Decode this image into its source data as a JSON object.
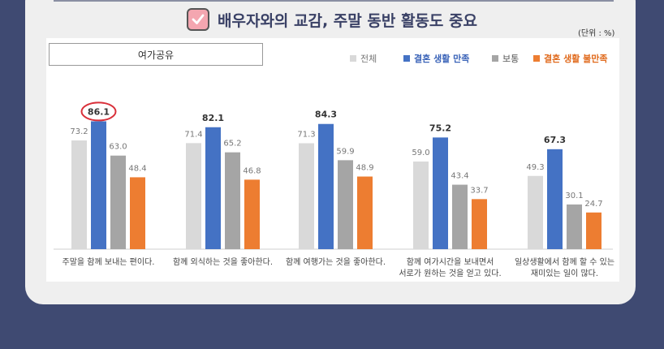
{
  "header": {
    "title": "배우자와의 교감, 주말 동반 활동도 중요",
    "unit": "(단위 : %)"
  },
  "panel": {
    "subtitle": "여가공유"
  },
  "colors": {
    "전체": "#d9d9d9",
    "결혼 생활 만족": "#4472c4",
    "보통": "#a5a5a5",
    "결혼 생활 불만족": "#ed7d31"
  },
  "chart_data": {
    "type": "bar",
    "categories": [
      "주말을 함께 보내는 편이다.",
      "함께 외식하는 것을 좋아한다.",
      "함께 여행가는 것을 좋아한다.",
      "함께 여가시간을 보내면서\n서로가 원하는 것을 얻고 있다.",
      "일상생활에서 함께 할 수 있는\n재미있는 일이 많다."
    ],
    "series": [
      {
        "name": "전체",
        "values": [
          73.2,
          71.4,
          71.3,
          59.0,
          49.3
        ]
      },
      {
        "name": "결혼 생활 만족",
        "values": [
          86.1,
          82.1,
          84.3,
          75.2,
          67.3
        ]
      },
      {
        "name": "보통",
        "values": [
          63.0,
          65.2,
          59.9,
          43.4,
          30.1
        ]
      },
      {
        "name": "결혼 생활 불만족",
        "values": [
          48.4,
          46.8,
          48.9,
          33.7,
          24.7
        ]
      }
    ],
    "highlight": {
      "category_index": 0,
      "series_index": 1
    },
    "ylim": [
      0,
      100
    ]
  }
}
